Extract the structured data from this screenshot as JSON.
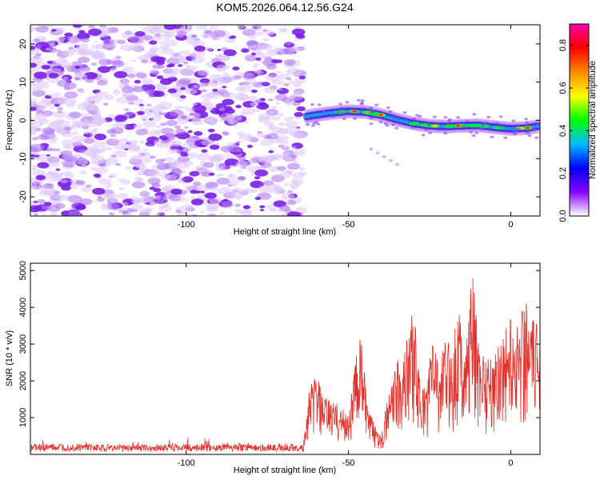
{
  "chart_data": [
    {
      "type": "heatmap",
      "title": "KOM5.2026.064.12.56.G24",
      "xlabel": "Height of straight line (km)",
      "ylabel": "Frequency (Hz)",
      "xlim": [
        -148,
        9
      ],
      "ylim": [
        -25,
        25
      ],
      "x_ticks": [
        -100,
        -50,
        0
      ],
      "y_ticks": [
        -20,
        -10,
        0,
        10,
        20
      ],
      "grid": false,
      "noise_region_x": [
        -148,
        -64
      ],
      "signal_track": {
        "x": [
          -63,
          -60,
          -55,
          -50,
          -45,
          -40,
          -35,
          -30,
          -25,
          -20,
          -15,
          -10,
          -5,
          0,
          5,
          9
        ],
        "y": [
          1.0,
          1.4,
          2.0,
          2.4,
          2.2,
          1.4,
          0.2,
          -0.8,
          -1.4,
          -1.6,
          -1.4,
          -1.3,
          -1.8,
          -2.2,
          -2.0,
          -1.4
        ]
      },
      "secondary_track": {
        "x": [
          -43,
          -41,
          -39,
          -37,
          -35
        ],
        "y": [
          -7.5,
          -8.5,
          -9.5,
          -10.5,
          -11.5
        ]
      },
      "colorbar": {
        "label": "Normalized spectral amplitude",
        "range": [
          0.0,
          0.9
        ],
        "ticks": [
          0.0,
          0.2,
          0.4,
          0.6,
          0.8
        ],
        "tick_labels": [
          "0.0",
          "0.2",
          "0.4",
          "0.6",
          "0.8"
        ],
        "colors": [
          "#ffffff",
          "#8800ff",
          "#0000ff",
          "#00bbff",
          "#00ff00",
          "#ffff00",
          "#ff8800",
          "#ff0000",
          "#ff00aa"
        ]
      },
      "color": "#7a1fe6"
    },
    {
      "type": "line",
      "xlabel": "Height of straight line (km)",
      "ylabel": "SNR (10 * v/v)",
      "xlim": [
        -148,
        9
      ],
      "ylim": [
        0,
        5200
      ],
      "x_ticks": [
        -100,
        -50,
        0
      ],
      "y_ticks": [
        1000,
        2000,
        3000,
        4000,
        5000
      ],
      "color": "#e8302a",
      "series_envelope": {
        "x": [
          -148,
          -140,
          -130,
          -120,
          -110,
          -100,
          -90,
          -80,
          -70,
          -64,
          -62,
          -60,
          -58,
          -55,
          -52,
          -50,
          -48,
          -46,
          -44,
          -42,
          -40,
          -38,
          -36,
          -34,
          -32,
          -30,
          -28,
          -26,
          -24,
          -22,
          -20,
          -18,
          -16,
          -14,
          -12,
          -10,
          -8,
          -6,
          -4,
          -2,
          0,
          2,
          4,
          6,
          9
        ],
        "y": [
          250,
          250,
          240,
          230,
          240,
          250,
          240,
          240,
          250,
          240,
          1800,
          2300,
          1600,
          1500,
          1300,
          1100,
          2600,
          3300,
          1200,
          900,
          600,
          1500,
          2200,
          2800,
          3200,
          4200,
          2000,
          1800,
          3600,
          2500,
          3200,
          3000,
          4200,
          2800,
          5100,
          3200,
          3000,
          2600,
          3100,
          3400,
          3800,
          3600,
          4400,
          3700,
          3600
        ]
      }
    }
  ]
}
